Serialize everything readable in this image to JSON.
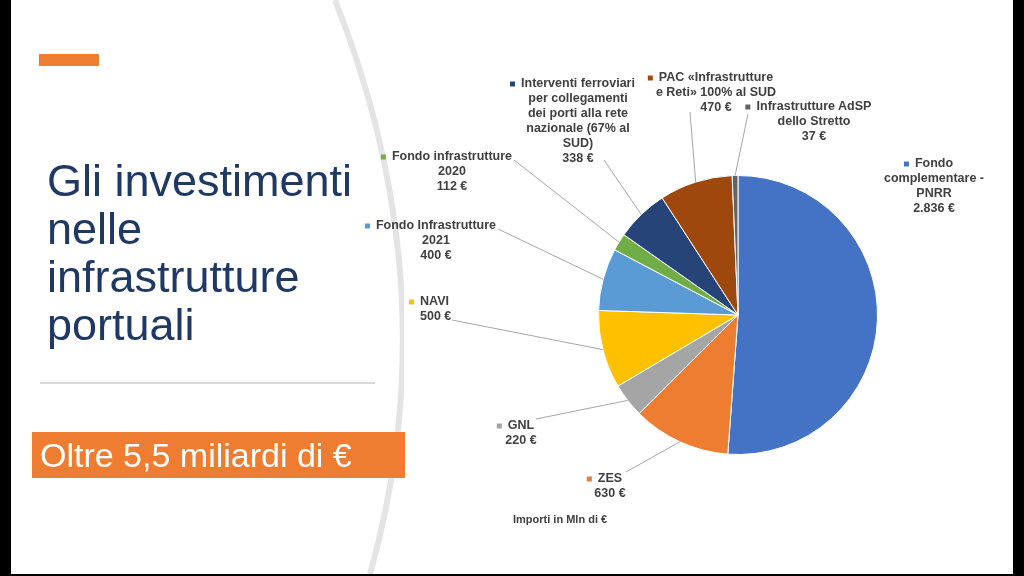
{
  "chart_data": {
    "type": "pie",
    "title": "Gli investimenti nelle infrastrutture portuali",
    "subtitle": "Oltre 5,5 miliardi di €",
    "annotations": [
      "Importi in Mln di €"
    ],
    "categories": [
      "Fondo complementare - PNRR",
      "ZES",
      "GNL",
      "NAVI",
      "Fondo Infrastrutture 2021",
      "Fondo infrastrutture 2020",
      "Interventi ferroviari per collegamenti dei porti alla rete nazionale (67% al SUD)",
      "PAC «Infrastrutture e Reti» 100% al SUD",
      "Infrastrutture AdSP dello Stretto"
    ],
    "values": [
      2836,
      630,
      220,
      500,
      400,
      112,
      338,
      470,
      37
    ],
    "value_labels": [
      "2.836 €",
      "630 €",
      "220 €",
      "500 €",
      "400 €",
      "112 €",
      "338 €",
      "470 €",
      "37 €"
    ],
    "colors": [
      "#4472c4",
      "#ed7d31",
      "#a5a5a5",
      "#ffc000",
      "#5b9bd5",
      "#70ad47",
      "#264478",
      "#9e480e",
      "#636363"
    ],
    "legend": "top left"
  }
}
